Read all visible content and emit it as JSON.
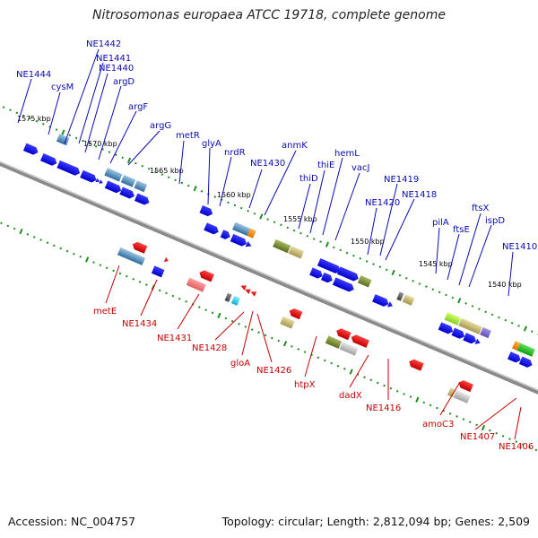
{
  "title": "Nitrosomonas europaea ATCC 19718, complete genome",
  "footer": {
    "accession": "Accession: NC_004757",
    "summary": "Topology: circular; Length: 2,812,094 bp; Genes: 2,509"
  },
  "colors": {
    "forward_label": "#0a0ab4",
    "reverse_label": "#c80000",
    "backbone": "#8c8c8c",
    "tick": "#1e8c1e"
  },
  "kbp_ticks": [
    "1575 kbp",
    "1570 kbp",
    "1565 kbp",
    "1560 kbp",
    "1555 kbp",
    "1550 kbp",
    "1545 kbp",
    "1540 kbp"
  ],
  "forward_labels": [
    "NE1444",
    "NE1442",
    "NE1441",
    "NE1440",
    "cysM",
    "argD",
    "argF",
    "argG",
    "metR",
    "glyA",
    "nrdR",
    "NE1430",
    "anmK",
    "thiE",
    "thiD",
    "hemL",
    "vacJ",
    "NE1419",
    "NE1418",
    "NE1420",
    "pilA",
    "ftsX",
    "ftsE",
    "ispD",
    "NE1410"
  ],
  "reverse_labels": [
    "metE",
    "NE1434",
    "NE1431",
    "NE1428",
    "gloA",
    "NE1426",
    "htpX",
    "dadX",
    "NE1416",
    "amoC3",
    "NE1407",
    "NE1406"
  ]
}
